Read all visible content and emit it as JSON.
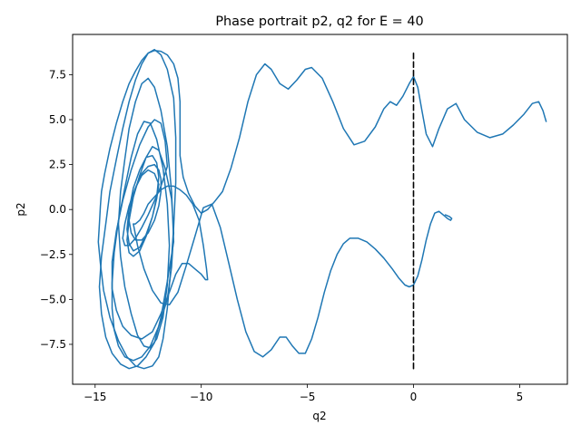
{
  "chart_data": {
    "type": "line",
    "title": "Phase portrait p2, q2 for E = 40",
    "xlabel": "q2",
    "ylabel": "p2",
    "xlim": [
      -16.06,
      7.25
    ],
    "ylim": [
      -9.72,
      9.74
    ],
    "grid": false,
    "x_ticks": [
      -15,
      -10,
      -5,
      0,
      5
    ],
    "x_tick_labels": [
      "−15",
      "−10",
      "−5",
      "0",
      "5"
    ],
    "y_ticks": [
      -7.5,
      -5.0,
      -2.5,
      0.0,
      2.5,
      5.0,
      7.5
    ],
    "y_tick_labels": [
      "−7.5",
      "−5.0",
      "−2.5",
      "0.0",
      "2.5",
      "5.0",
      "7.5"
    ],
    "series": [
      {
        "color": "#1f77b4",
        "style": "solid",
        "x": [
          6.25,
          6.1,
          5.9,
          5.6,
          5.2,
          4.7,
          4.2,
          3.6,
          3.0,
          2.4,
          2.0,
          1.6,
          1.2,
          0.9,
          0.6,
          0.4,
          0.2,
          0.0,
          -0.2,
          -0.5,
          -0.8,
          -1.1,
          -1.4,
          -1.8,
          -2.3,
          -2.8,
          -3.3,
          -3.8,
          -4.3,
          -4.8,
          -5.1,
          -5.5,
          -5.9,
          -6.3,
          -6.7,
          -7.0,
          -7.4,
          -7.8,
          -8.2,
          -8.6,
          -9.0,
          -9.4,
          -9.7,
          -10.0,
          -10.3,
          -10.6,
          -10.85,
          -11.0,
          -11.0,
          -11.0,
          -11.1,
          -11.3,
          -11.6,
          -11.9,
          -12.2,
          -12.5,
          -12.8,
          -13.1,
          -13.4,
          -13.7,
          -14.0,
          -14.3,
          -14.55,
          -14.7,
          -14.75,
          -14.8,
          -14.85,
          -14.75,
          -14.6,
          -14.3,
          -13.9,
          -13.5,
          -13.1,
          -12.7,
          -12.3,
          -12.0,
          -11.8,
          -11.6,
          -11.45
        ],
        "y": [
          4.9,
          5.5,
          6.0,
          5.9,
          5.3,
          4.7,
          4.2,
          4.0,
          4.3,
          5.0,
          5.9,
          5.6,
          4.5,
          3.5,
          4.2,
          5.5,
          6.8,
          7.4,
          7.0,
          6.3,
          5.8,
          6.0,
          5.6,
          4.6,
          3.8,
          3.6,
          4.5,
          6.0,
          7.3,
          7.9,
          7.8,
          7.2,
          6.7,
          7.0,
          7.8,
          8.1,
          7.5,
          6.0,
          4.0,
          2.3,
          1.0,
          0.4,
          0.0,
          -0.2,
          0.2,
          0.9,
          1.8,
          3.0,
          4.5,
          6.0,
          7.3,
          8.1,
          8.6,
          8.8,
          8.85,
          8.7,
          8.3,
          7.7,
          7.0,
          6.0,
          4.8,
          3.4,
          2.0,
          1.0,
          0.2,
          -0.8,
          -1.8,
          -3.0,
          -4.5,
          -6.0,
          -7.3,
          -8.2,
          -8.7,
          -8.85,
          -8.7,
          -8.2,
          -7.2,
          -5.5,
          -3.5
        ]
      },
      {
        "color": "#1f77b4",
        "style": "solid",
        "x": [
          -11.45,
          -11.3,
          -11.2,
          -11.2,
          -11.3,
          -11.6,
          -11.9,
          -12.2,
          -12.5,
          -12.8,
          -13.1,
          -13.4,
          -13.7,
          -14.0,
          -14.3,
          -14.5,
          -14.7,
          -14.8,
          -14.7,
          -14.5,
          -14.2,
          -13.8,
          -13.4,
          -13.0,
          -12.6,
          -12.2,
          -11.9,
          -11.6,
          -11.3
        ],
        "y": [
          -3.5,
          -1.0,
          1.5,
          4.0,
          6.2,
          7.8,
          8.6,
          8.9,
          8.7,
          8.1,
          7.2,
          6.0,
          4.5,
          2.8,
          1.0,
          -0.8,
          -2.6,
          -4.3,
          -5.8,
          -7.1,
          -8.0,
          -8.6,
          -8.85,
          -8.7,
          -8.2,
          -7.4,
          -6.0,
          -4.0,
          -1.8
        ]
      },
      {
        "color": "#1f77b4",
        "style": "solid",
        "x": [
          -11.3,
          -11.4,
          -11.6,
          -11.9,
          -12.2,
          -12.5,
          -12.8,
          -13.1,
          -13.4,
          -13.6,
          -13.8,
          -13.9,
          -13.8,
          -13.6,
          -13.3,
          -13.0,
          -12.7,
          -12.4,
          -12.1,
          -11.8,
          -11.6,
          -11.5,
          -11.6,
          -11.8,
          -12.1,
          -12.4,
          -12.7,
          -13.0,
          -13.3,
          -13.6,
          -13.9,
          -14.1,
          -14.2,
          -14.2,
          -14.1,
          -13.9,
          -13.6,
          -13.2,
          -12.8,
          -12.4,
          -12.0,
          -11.6,
          -11.4,
          -11.3,
          -11.4,
          -11.7,
          -12.0
        ],
        "y": [
          -1.8,
          1.0,
          3.5,
          5.5,
          6.8,
          7.3,
          7.0,
          6.0,
          4.5,
          2.8,
          1.0,
          -0.8,
          -2.6,
          -4.3,
          -5.8,
          -7.0,
          -7.6,
          -7.7,
          -7.2,
          -6.0,
          -4.2,
          -2.0,
          0.3,
          2.3,
          3.9,
          4.8,
          4.9,
          4.2,
          2.9,
          1.2,
          -0.6,
          -2.4,
          -4.1,
          -5.5,
          -6.7,
          -7.6,
          -8.2,
          -8.4,
          -8.2,
          -7.6,
          -6.5,
          -5.0,
          -3.2,
          -1.3,
          0.6,
          2.3,
          3.3
        ]
      },
      {
        "color": "#1f77b4",
        "style": "solid",
        "x": [
          -12.0,
          -12.3,
          -12.6,
          -12.9,
          -13.2,
          -13.4,
          -13.5,
          -13.4,
          -13.2,
          -12.9,
          -12.6,
          -12.3,
          -12.1,
          -12.0,
          -12.1,
          -12.3,
          -12.6,
          -12.9,
          -13.2,
          -13.4,
          -13.5,
          -13.4,
          -13.2,
          -12.9,
          -12.6,
          -12.3,
          -12.1,
          -12.0
        ],
        "y": [
          3.3,
          3.5,
          2.9,
          1.9,
          0.7,
          -0.6,
          -1.7,
          -2.4,
          -2.6,
          -2.3,
          -1.5,
          -0.4,
          0.7,
          1.8,
          2.6,
          3.0,
          2.9,
          2.2,
          1.2,
          0.0,
          -1.1,
          -1.9,
          -2.3,
          -2.1,
          -1.4,
          -0.4,
          0.6,
          1.4
        ]
      },
      {
        "color": "#1f77b4",
        "style": "solid",
        "x": [
          -12.0,
          -12.2,
          -12.5,
          -12.8,
          -13.1,
          -13.3,
          -13.4,
          -13.3,
          -13.1,
          -12.8,
          -12.5,
          -12.2,
          -12.0,
          -11.9,
          -11.9,
          -12.0,
          -12.2,
          -12.5,
          -12.8,
          -13.1,
          -13.4,
          -13.6,
          -13.7,
          -13.6,
          -13.4,
          -13.1,
          -12.8,
          -12.5,
          -12.2,
          -11.9,
          -11.7,
          -11.6
        ],
        "y": [
          1.4,
          2.0,
          2.2,
          1.9,
          1.2,
          0.3,
          -0.6,
          -1.3,
          -1.7,
          -1.7,
          -1.3,
          -0.6,
          0.2,
          1.0,
          1.7,
          2.2,
          2.5,
          2.4,
          2.0,
          1.2,
          0.2,
          -0.8,
          -1.6,
          -2.0,
          -2.0,
          -1.6,
          -1.0,
          -0.3,
          0.5,
          1.3,
          2.0,
          2.4
        ]
      },
      {
        "color": "#1f77b4",
        "style": "solid",
        "x": [
          -11.6,
          -11.7,
          -11.9,
          -12.2,
          -12.5,
          -12.9,
          -13.3,
          -13.7,
          -14.0,
          -14.2,
          -14.2,
          -14.0,
          -13.7,
          -13.3,
          -12.8,
          -12.3,
          -11.9,
          -11.5,
          -11.2,
          -10.9,
          -10.6,
          -10.3,
          -10.0,
          -9.8,
          -9.7,
          -9.75,
          -9.9,
          -10.1,
          -10.4,
          -10.7,
          -11.0,
          -11.3,
          -11.6,
          -11.9,
          -12.2,
          -12.5,
          -12.7,
          -12.9,
          -13.1,
          -13.2
        ],
        "y": [
          2.4,
          3.8,
          4.8,
          5.0,
          4.6,
          3.6,
          2.2,
          0.5,
          -1.2,
          -2.9,
          -4.4,
          -5.6,
          -6.5,
          -7.0,
          -7.2,
          -6.8,
          -5.8,
          -4.6,
          -3.6,
          -3.0,
          -3.0,
          -3.3,
          -3.6,
          -3.9,
          -3.9,
          -3.3,
          -2.0,
          -0.6,
          0.3,
          0.8,
          1.1,
          1.3,
          1.3,
          1.1,
          0.7,
          0.3,
          -0.2,
          -0.6,
          -0.8,
          -0.8
        ]
      },
      {
        "color": "#1f77b4",
        "style": "solid",
        "x": [
          -13.2,
          -13.0,
          -12.7,
          -12.3,
          -11.9,
          -11.5,
          -11.1,
          -10.7,
          -10.3,
          -9.9,
          -9.5,
          -9.1,
          -8.7,
          -8.3,
          -7.9,
          -7.5,
          -7.1,
          -6.7,
          -6.3,
          -6.0,
          -5.7,
          -5.4,
          -5.1,
          -4.8,
          -4.5,
          -4.2,
          -3.9,
          -3.6,
          -3.3,
          -3.0,
          -2.6,
          -2.2,
          -1.8,
          -1.4,
          -1.0,
          -0.7,
          -0.4,
          -0.2,
          0.0,
          0.2,
          0.4,
          0.6,
          0.8,
          1.0,
          1.2,
          1.4,
          1.6,
          1.75,
          1.8,
          1.7,
          1.5
        ],
        "y": [
          -0.8,
          -2.0,
          -3.3,
          -4.5,
          -5.2,
          -5.3,
          -4.6,
          -3.1,
          -1.5,
          0.1,
          0.3,
          -1.0,
          -3.0,
          -5.0,
          -6.8,
          -7.9,
          -8.2,
          -7.8,
          -7.1,
          -7.1,
          -7.6,
          -8.0,
          -8.0,
          -7.2,
          -6.0,
          -4.6,
          -3.4,
          -2.5,
          -1.9,
          -1.6,
          -1.6,
          -1.8,
          -2.2,
          -2.7,
          -3.3,
          -3.8,
          -4.2,
          -4.3,
          -4.2,
          -3.7,
          -2.8,
          -1.7,
          -0.8,
          -0.2,
          -0.1,
          -0.3,
          -0.5,
          -0.6,
          -0.5,
          -0.4,
          -0.3
        ]
      },
      {
        "color": "#000000",
        "style": "dashed",
        "x": [
          0.0,
          0.0
        ],
        "y": [
          -8.85,
          8.85
        ]
      }
    ]
  }
}
